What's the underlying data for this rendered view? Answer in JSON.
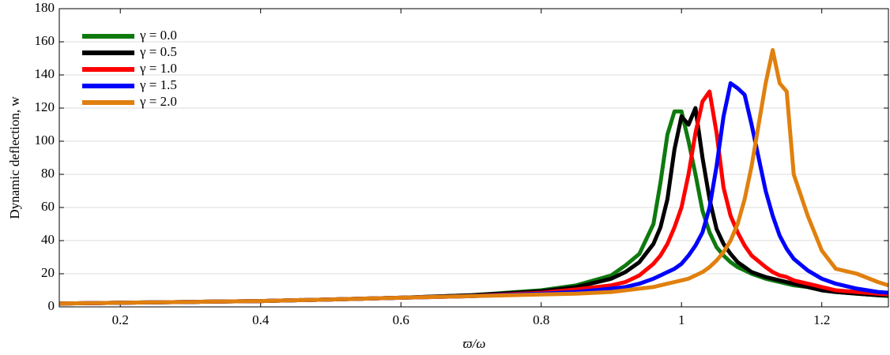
{
  "chart_data": {
    "type": "line",
    "x_label": "ϖ/ω",
    "y_label": "Dynamic deflection, w",
    "x": [
      0.113,
      0.2,
      0.3,
      0.4,
      0.5,
      0.6,
      0.7,
      0.8,
      0.85,
      0.9,
      0.92,
      0.94,
      0.96,
      0.97,
      0.98,
      0.99,
      1.0,
      1.01,
      1.02,
      1.03,
      1.04,
      1.05,
      1.06,
      1.07,
      1.08,
      1.09,
      1.1,
      1.12,
      1.13,
      1.14,
      1.15,
      1.16,
      1.18,
      1.2,
      1.22,
      1.25,
      1.28,
      1.295
    ],
    "series": [
      {
        "name": "γ = 0.0",
        "color": "#0e7a0e",
        "values": [
          2,
          2.5,
          3,
          3.5,
          4.5,
          5.5,
          7,
          10,
          13,
          19,
          25,
          32,
          50,
          75,
          104,
          118,
          118,
          100,
          80,
          58,
          45,
          36,
          31,
          27,
          24,
          22,
          20,
          17,
          16,
          15,
          14,
          13,
          12,
          10,
          9,
          8,
          7,
          6.5
        ]
      },
      {
        "name": "γ = 0.5",
        "color": "#000000",
        "values": [
          2,
          2.5,
          3,
          3.5,
          4.5,
          5.5,
          7,
          9.5,
          12,
          17,
          21,
          27,
          38,
          48,
          65,
          95,
          115,
          110,
          120,
          90,
          65,
          47,
          38,
          32,
          27,
          24,
          21,
          18,
          17,
          16,
          15,
          14,
          12,
          10,
          9,
          8,
          7,
          7
        ]
      },
      {
        "name": "γ = 1.0",
        "color": "#ff0000",
        "values": [
          2,
          2.5,
          3,
          3.5,
          4.5,
          5.5,
          6.5,
          8.5,
          10.5,
          13,
          15,
          19,
          26,
          31,
          38,
          48,
          60,
          80,
          105,
          124,
          130,
          105,
          72,
          55,
          45,
          37,
          31,
          24,
          21,
          19,
          18,
          16,
          14,
          12,
          10,
          9,
          8,
          7.5
        ]
      },
      {
        "name": "γ = 1.5",
        "color": "#0000ff",
        "values": [
          2,
          2.5,
          3,
          3.5,
          4.5,
          5.5,
          6.5,
          8,
          9,
          11,
          12,
          14,
          17,
          19,
          21,
          23,
          26,
          31,
          37,
          45,
          60,
          85,
          115,
          135,
          132,
          128,
          110,
          70,
          55,
          43,
          35,
          29,
          22,
          17,
          14,
          11,
          9,
          8.5
        ]
      },
      {
        "name": "γ = 2.0",
        "color": "#e0800e",
        "values": [
          2,
          2.5,
          3,
          3.5,
          4.5,
          5.5,
          6.5,
          7.5,
          8,
          9,
          10,
          11,
          12,
          13,
          14,
          15,
          16,
          17,
          19,
          21,
          24,
          28,
          33,
          40,
          50,
          65,
          85,
          135,
          155,
          135,
          130,
          80,
          55,
          34,
          23,
          20,
          15,
          13
        ]
      }
    ],
    "xlim": [
      0.113,
      1.295
    ],
    "ylim": [
      0,
      180
    ],
    "xticks": [
      0.2,
      0.4,
      0.6,
      0.8,
      1,
      1.2
    ],
    "yticks": [
      0,
      20,
      40,
      60,
      80,
      100,
      120,
      140,
      160,
      180
    ],
    "grid": true,
    "legend": "upper left"
  }
}
